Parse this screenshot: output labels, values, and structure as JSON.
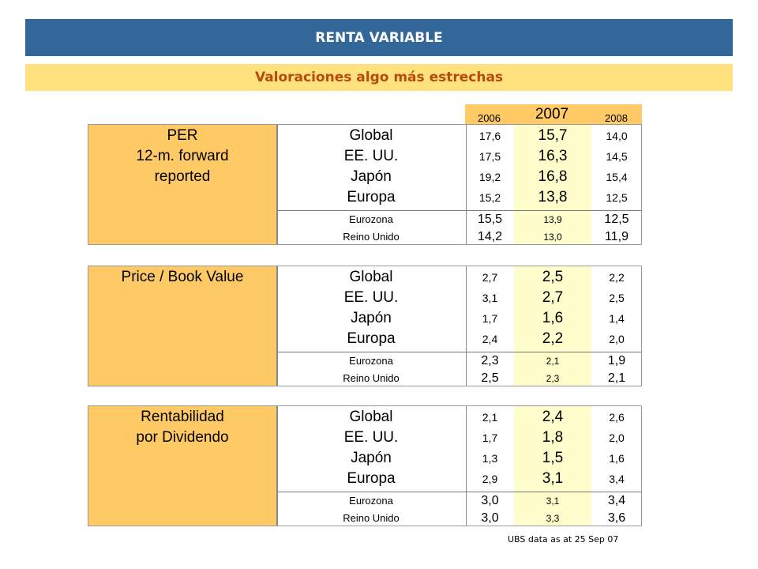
{
  "header": {
    "title": "RENTA VARIABLE",
    "subtitle": "Valoraciones algo más estrechas"
  },
  "years": [
    "2006",
    "2007",
    "2008"
  ],
  "blocks": [
    {
      "label": [
        "PER",
        "12-m. forward",
        "reported"
      ],
      "rows": [
        {
          "region": "Global",
          "v": [
            "17,6",
            "15,7",
            "14,0"
          ]
        },
        {
          "region": "EE. UU.",
          "v": [
            "17,5",
            "16,3",
            "14,5"
          ]
        },
        {
          "region": "Japón",
          "v": [
            "19,2",
            "16,8",
            "15,4"
          ]
        },
        {
          "region": "Europa",
          "v": [
            "15,2",
            "13,8",
            "12,5"
          ]
        },
        {
          "region": "Eurozona",
          "v": [
            "15,5",
            "13,9",
            "12,5"
          ]
        },
        {
          "region": "Reino Unido",
          "v": [
            "14,2",
            "13,0",
            "11,9"
          ]
        }
      ]
    },
    {
      "label": [
        "Price / Book Value",
        "",
        ""
      ],
      "rows": [
        {
          "region": "Global",
          "v": [
            "2,7",
            "2,5",
            "2,2"
          ]
        },
        {
          "region": "EE. UU.",
          "v": [
            "3,1",
            "2,7",
            "2,5"
          ]
        },
        {
          "region": "Japón",
          "v": [
            "1,7",
            "1,6",
            "1,4"
          ]
        },
        {
          "region": "Europa",
          "v": [
            "2,4",
            "2,2",
            "2,0"
          ]
        },
        {
          "region": "Eurozona",
          "v": [
            "2,3",
            "2,1",
            "1,9"
          ]
        },
        {
          "region": "Reino Unido",
          "v": [
            "2,5",
            "2,3",
            "2,1"
          ]
        }
      ]
    },
    {
      "label": [
        "Rentabilidad",
        "por Dividendo",
        ""
      ],
      "rows": [
        {
          "region": "Global",
          "v": [
            "2,1",
            "2,4",
            "2,6"
          ]
        },
        {
          "region": "EE. UU.",
          "v": [
            "1,7",
            "1,8",
            "2,0"
          ]
        },
        {
          "region": "Japón",
          "v": [
            "1,3",
            "1,5",
            "1,6"
          ]
        },
        {
          "region": "Europa",
          "v": [
            "2,9",
            "3,1",
            "3,4"
          ]
        },
        {
          "region": "Eurozona",
          "v": [
            "3,0",
            "3,1",
            "3,4"
          ]
        },
        {
          "region": "Reino Unido",
          "v": [
            "3,0",
            "3,3",
            "3,6"
          ]
        }
      ]
    }
  ],
  "source": "UBS data as at 25 Sep 07"
}
